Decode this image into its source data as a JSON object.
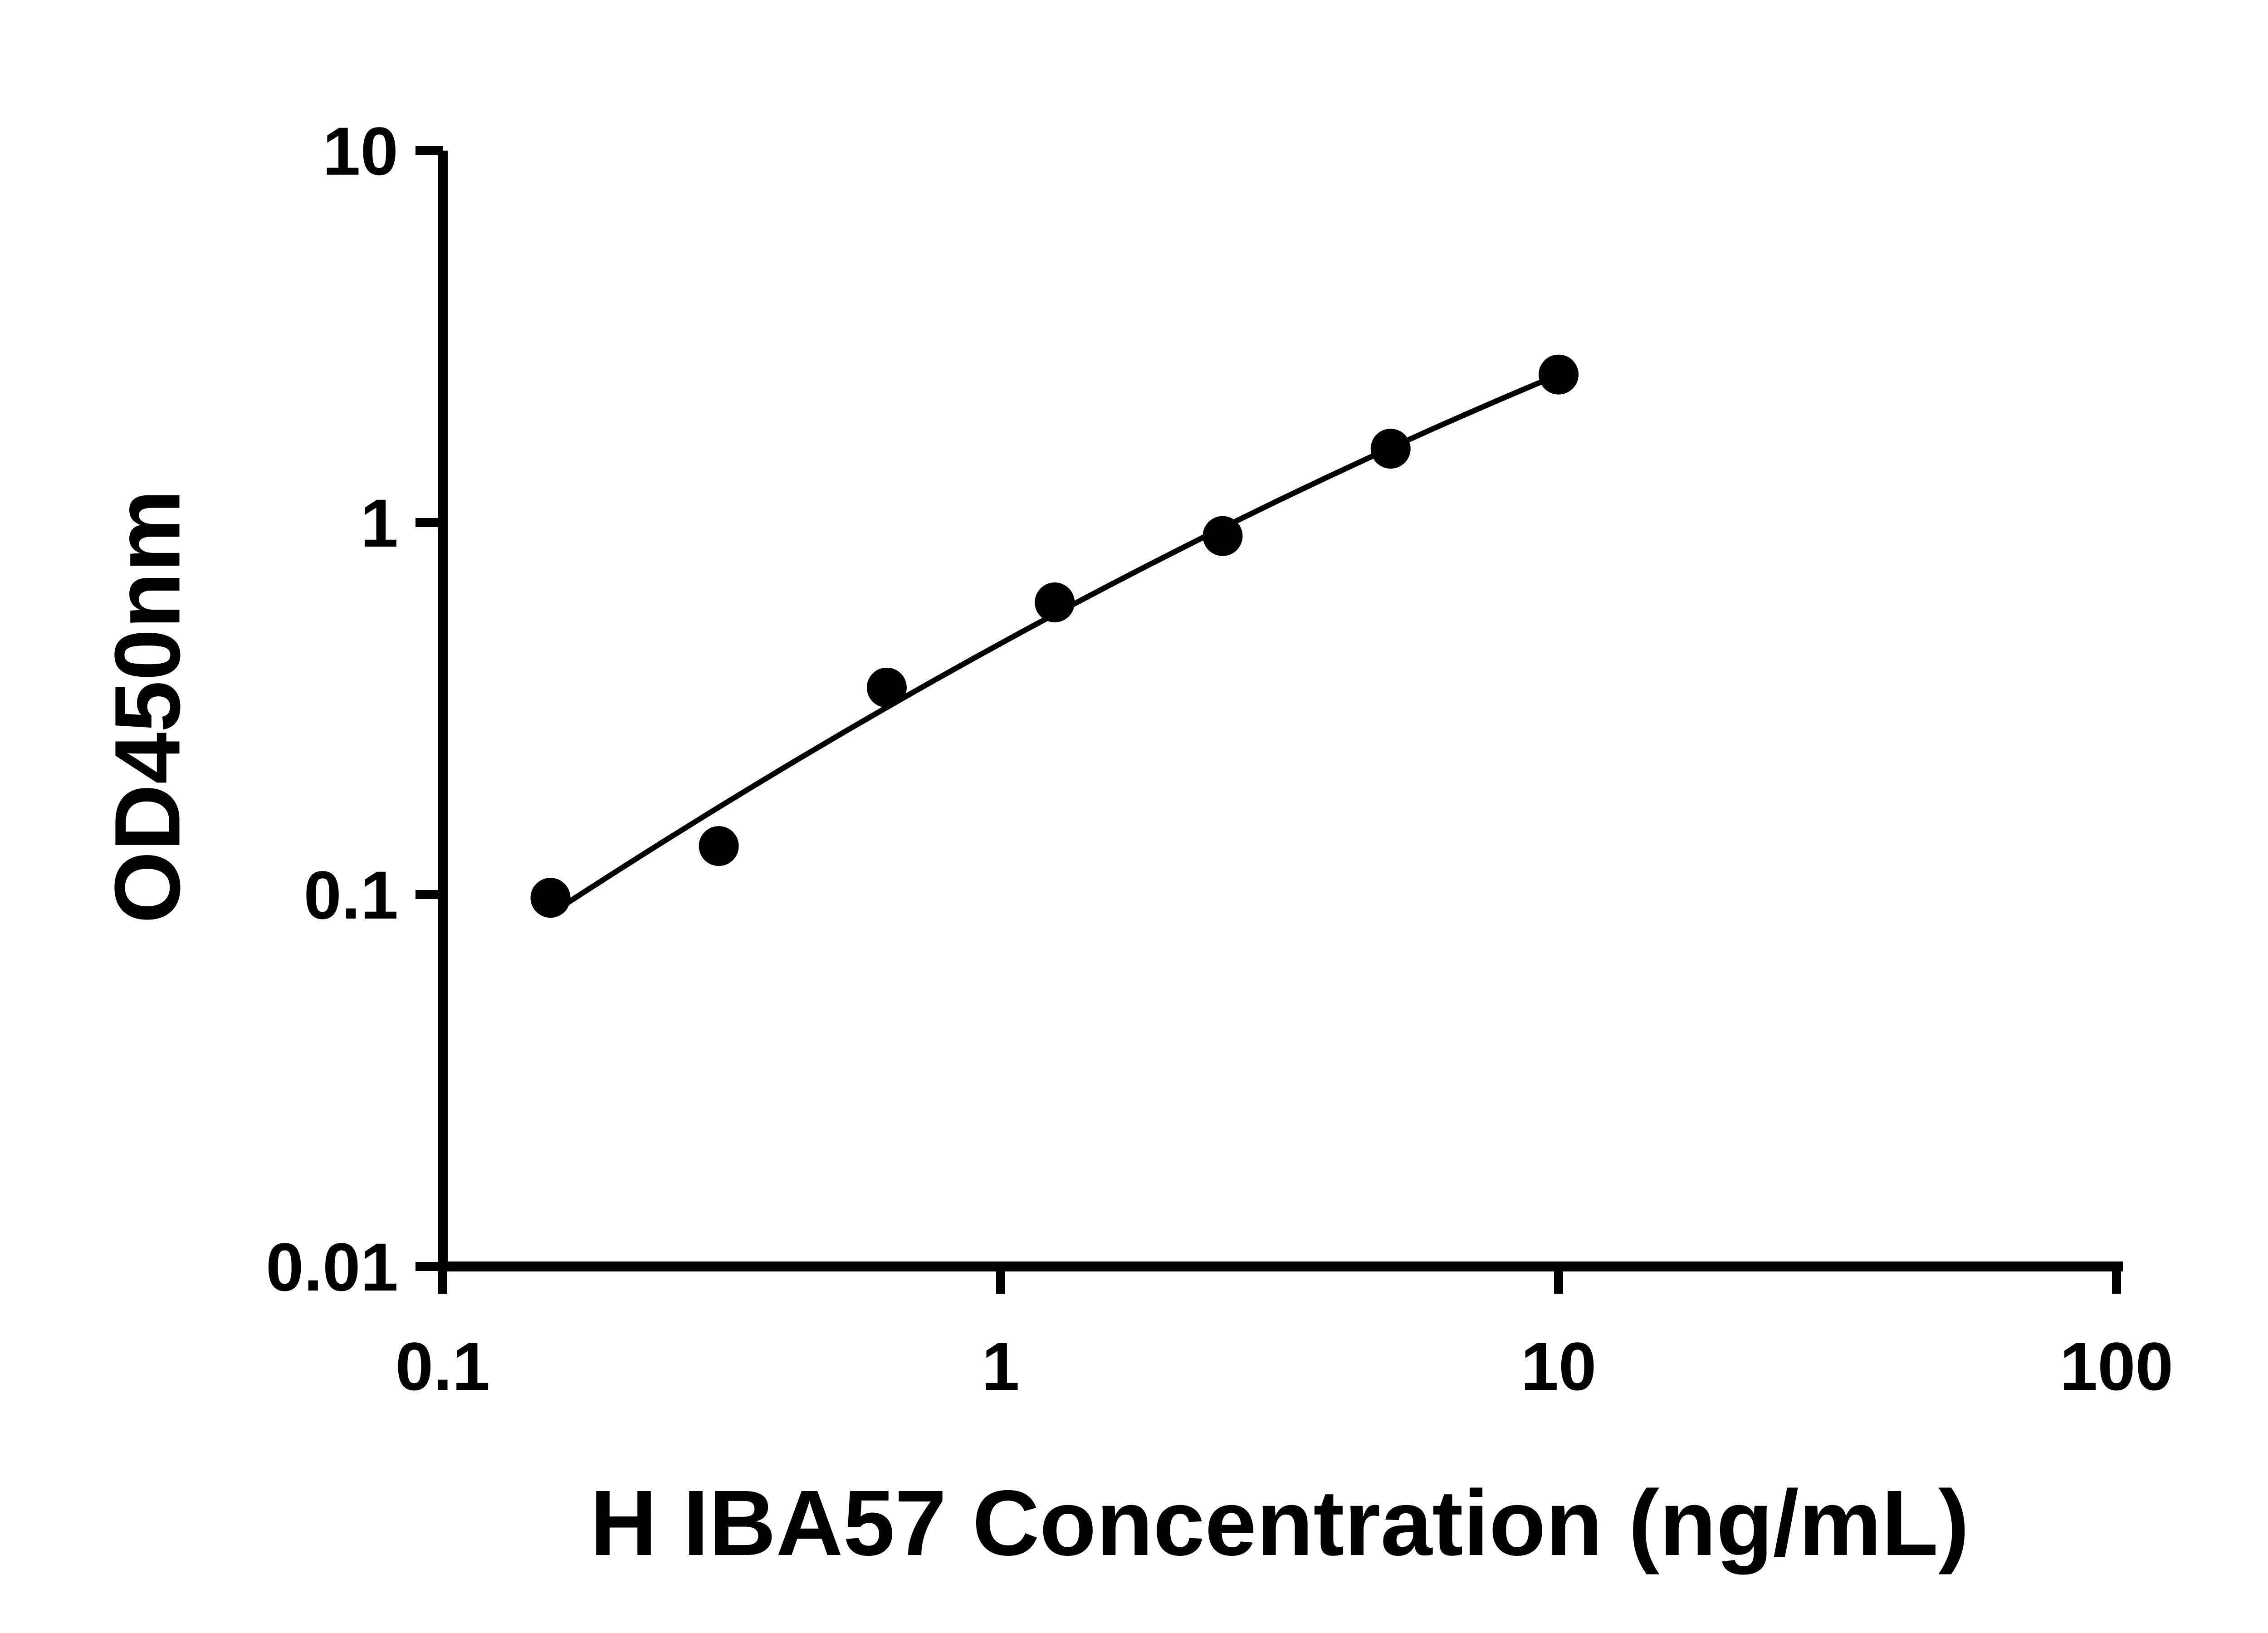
{
  "figure": {
    "background": "#ffffff",
    "axis_color": "#000000",
    "text_color": "#000000"
  },
  "chart_data": {
    "type": "scatter",
    "title": "",
    "xlabel": "H IBA57 Concentration (ng/mL)",
    "ylabel": "OD450nm",
    "x_scale": "log10",
    "y_scale": "log10",
    "xlim": [
      0.1,
      100
    ],
    "ylim": [
      0.01,
      10
    ],
    "grid": false,
    "legend": "none",
    "x_ticks": [
      {
        "v": 0.1,
        "label": "0.1"
      },
      {
        "v": 1,
        "label": "1"
      },
      {
        "v": 10,
        "label": "10"
      },
      {
        "v": 100,
        "label": "100"
      }
    ],
    "y_ticks": [
      {
        "v": 10,
        "label": "10"
      },
      {
        "v": 1,
        "label": "1"
      },
      {
        "v": 0.1,
        "label": "0.1"
      },
      {
        "v": 0.01,
        "label": "0.01"
      }
    ],
    "series": [
      {
        "marker": "filled-circle",
        "marker_color": "#000000",
        "marker_radius": 44,
        "line": "fitted-curve",
        "line_color": "#000000",
        "points": [
          {
            "x": 0.156,
            "y": 0.098
          },
          {
            "x": 0.3125,
            "y": 0.135
          },
          {
            "x": 0.625,
            "y": 0.36
          },
          {
            "x": 1.25,
            "y": 0.61
          },
          {
            "x": 2.5,
            "y": 0.92
          },
          {
            "x": 5,
            "y": 1.58
          },
          {
            "x": 10,
            "y": 2.5
          }
        ]
      }
    ],
    "trend_line": {
      "fit": "quadratic-in-log-log",
      "x_start": 0.156,
      "x_end": 10
    }
  }
}
